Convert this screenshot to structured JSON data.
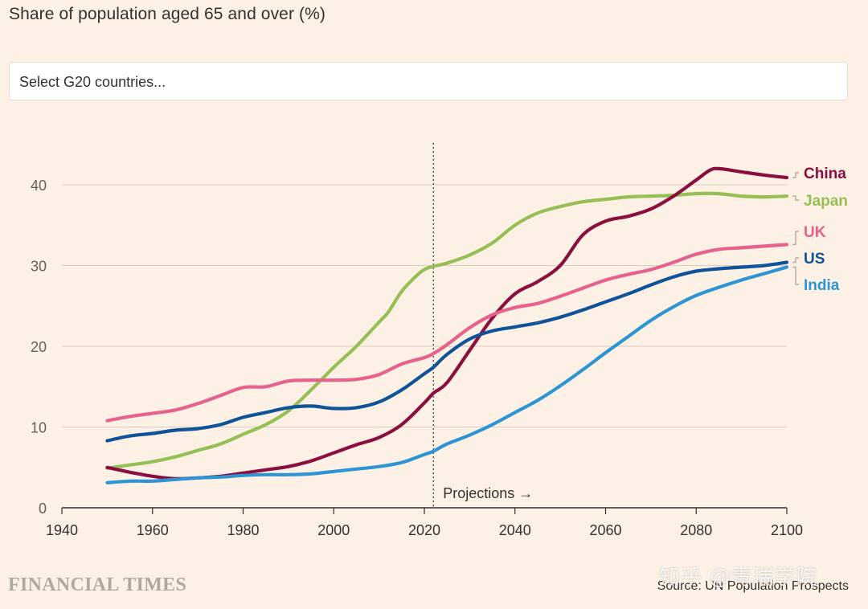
{
  "title": "Share of population aged 65 and over (%)",
  "select": {
    "placeholder": "Select G20 countries..."
  },
  "source": "Source: UN Population Prospects",
  "brand": "FINANCIAL TIMES",
  "watermark": "知乎 @青瑞学院",
  "chart_data": {
    "type": "line",
    "title": "Share of population aged 65 and over (%)",
    "xlabel": "",
    "ylabel": "",
    "xlim": [
      1940,
      2100
    ],
    "ylim": [
      0,
      45
    ],
    "xticks": [
      1940,
      1960,
      1980,
      2000,
      2020,
      2040,
      2060,
      2080,
      2100
    ],
    "yticks": [
      0,
      10,
      20,
      30,
      40
    ],
    "grid": "horizontal",
    "legend": "direct labels at right end of lines",
    "annotation": {
      "x": 2022,
      "label": "Projections",
      "arrow": "→"
    },
    "series": [
      {
        "name": "Japan",
        "color": "#96bf55",
        "points": [
          [
            1950,
            4.9
          ],
          [
            1955,
            5.3
          ],
          [
            1960,
            5.7
          ],
          [
            1965,
            6.3
          ],
          [
            1970,
            7.1
          ],
          [
            1975,
            7.9
          ],
          [
            1980,
            9.1
          ],
          [
            1985,
            10.3
          ],
          [
            1990,
            12.0
          ],
          [
            1995,
            14.6
          ],
          [
            2000,
            17.4
          ],
          [
            2005,
            20.0
          ],
          [
            2010,
            23.0
          ],
          [
            2012,
            24.2
          ],
          [
            2015,
            26.8
          ],
          [
            2018,
            28.6
          ],
          [
            2020,
            29.5
          ],
          [
            2022,
            29.9
          ],
          [
            2025,
            30.3
          ],
          [
            2030,
            31.3
          ],
          [
            2035,
            32.8
          ],
          [
            2040,
            35.0
          ],
          [
            2045,
            36.5
          ],
          [
            2050,
            37.3
          ],
          [
            2055,
            37.9
          ],
          [
            2060,
            38.2
          ],
          [
            2065,
            38.5
          ],
          [
            2070,
            38.6
          ],
          [
            2075,
            38.7
          ],
          [
            2080,
            38.9
          ],
          [
            2085,
            38.9
          ],
          [
            2090,
            38.6
          ],
          [
            2095,
            38.5
          ],
          [
            2100,
            38.6
          ]
        ]
      },
      {
        "name": "China",
        "color": "#8b0f3e",
        "points": [
          [
            1950,
            5.0
          ],
          [
            1955,
            4.4
          ],
          [
            1960,
            3.9
          ],
          [
            1965,
            3.6
          ],
          [
            1970,
            3.7
          ],
          [
            1975,
            3.9
          ],
          [
            1980,
            4.3
          ],
          [
            1985,
            4.7
          ],
          [
            1990,
            5.1
          ],
          [
            1995,
            5.8
          ],
          [
            2000,
            6.8
          ],
          [
            2005,
            7.8
          ],
          [
            2010,
            8.7
          ],
          [
            2015,
            10.3
          ],
          [
            2020,
            13.0
          ],
          [
            2022,
            14.2
          ],
          [
            2025,
            15.5
          ],
          [
            2030,
            19.5
          ],
          [
            2035,
            23.5
          ],
          [
            2040,
            26.5
          ],
          [
            2045,
            28.0
          ],
          [
            2050,
            30.0
          ],
          [
            2055,
            33.8
          ],
          [
            2060,
            35.5
          ],
          [
            2065,
            36.1
          ],
          [
            2070,
            37.0
          ],
          [
            2075,
            38.6
          ],
          [
            2080,
            40.6
          ],
          [
            2083,
            41.8
          ],
          [
            2085,
            42.0
          ],
          [
            2090,
            41.6
          ],
          [
            2095,
            41.2
          ],
          [
            2100,
            40.9
          ]
        ]
      },
      {
        "name": "UK",
        "color": "#e8618c",
        "points": [
          [
            1950,
            10.8
          ],
          [
            1955,
            11.3
          ],
          [
            1960,
            11.7
          ],
          [
            1965,
            12.1
          ],
          [
            1970,
            12.9
          ],
          [
            1975,
            13.9
          ],
          [
            1980,
            14.9
          ],
          [
            1985,
            15.0
          ],
          [
            1990,
            15.7
          ],
          [
            1995,
            15.8
          ],
          [
            2000,
            15.8
          ],
          [
            2005,
            15.9
          ],
          [
            2010,
            16.5
          ],
          [
            2015,
            17.8
          ],
          [
            2020,
            18.6
          ],
          [
            2022,
            19.1
          ],
          [
            2025,
            20.2
          ],
          [
            2030,
            22.3
          ],
          [
            2035,
            23.9
          ],
          [
            2040,
            24.8
          ],
          [
            2045,
            25.3
          ],
          [
            2050,
            26.2
          ],
          [
            2055,
            27.2
          ],
          [
            2060,
            28.2
          ],
          [
            2065,
            28.9
          ],
          [
            2070,
            29.5
          ],
          [
            2075,
            30.4
          ],
          [
            2080,
            31.4
          ],
          [
            2085,
            32.0
          ],
          [
            2090,
            32.2
          ],
          [
            2095,
            32.4
          ],
          [
            2100,
            32.6
          ]
        ]
      },
      {
        "name": "US",
        "color": "#0f5499",
        "points": [
          [
            1950,
            8.3
          ],
          [
            1955,
            8.9
          ],
          [
            1960,
            9.2
          ],
          [
            1965,
            9.6
          ],
          [
            1970,
            9.8
          ],
          [
            1975,
            10.3
          ],
          [
            1980,
            11.2
          ],
          [
            1985,
            11.8
          ],
          [
            1990,
            12.4
          ],
          [
            1995,
            12.6
          ],
          [
            2000,
            12.3
          ],
          [
            2005,
            12.4
          ],
          [
            2010,
            13.1
          ],
          [
            2015,
            14.6
          ],
          [
            2020,
            16.6
          ],
          [
            2022,
            17.4
          ],
          [
            2025,
            19.0
          ],
          [
            2030,
            20.9
          ],
          [
            2035,
            21.9
          ],
          [
            2040,
            22.4
          ],
          [
            2045,
            22.9
          ],
          [
            2050,
            23.6
          ],
          [
            2055,
            24.5
          ],
          [
            2060,
            25.5
          ],
          [
            2065,
            26.5
          ],
          [
            2070,
            27.6
          ],
          [
            2075,
            28.6
          ],
          [
            2080,
            29.3
          ],
          [
            2085,
            29.6
          ],
          [
            2090,
            29.8
          ],
          [
            2095,
            30.0
          ],
          [
            2100,
            30.4
          ]
        ]
      },
      {
        "name": "India",
        "color": "#2e95d5",
        "points": [
          [
            1950,
            3.1
          ],
          [
            1955,
            3.3
          ],
          [
            1960,
            3.3
          ],
          [
            1965,
            3.5
          ],
          [
            1970,
            3.7
          ],
          [
            1975,
            3.8
          ],
          [
            1980,
            4.0
          ],
          [
            1985,
            4.1
          ],
          [
            1990,
            4.1
          ],
          [
            1995,
            4.2
          ],
          [
            2000,
            4.5
          ],
          [
            2005,
            4.8
          ],
          [
            2010,
            5.1
          ],
          [
            2015,
            5.6
          ],
          [
            2020,
            6.6
          ],
          [
            2022,
            7.0
          ],
          [
            2025,
            7.9
          ],
          [
            2030,
            9.0
          ],
          [
            2035,
            10.3
          ],
          [
            2040,
            11.8
          ],
          [
            2045,
            13.3
          ],
          [
            2050,
            15.1
          ],
          [
            2055,
            17.1
          ],
          [
            2060,
            19.2
          ],
          [
            2065,
            21.2
          ],
          [
            2070,
            23.2
          ],
          [
            2075,
            24.9
          ],
          [
            2080,
            26.3
          ],
          [
            2085,
            27.3
          ],
          [
            2090,
            28.2
          ],
          [
            2095,
            29.0
          ],
          [
            2100,
            29.8
          ]
        ]
      }
    ]
  }
}
